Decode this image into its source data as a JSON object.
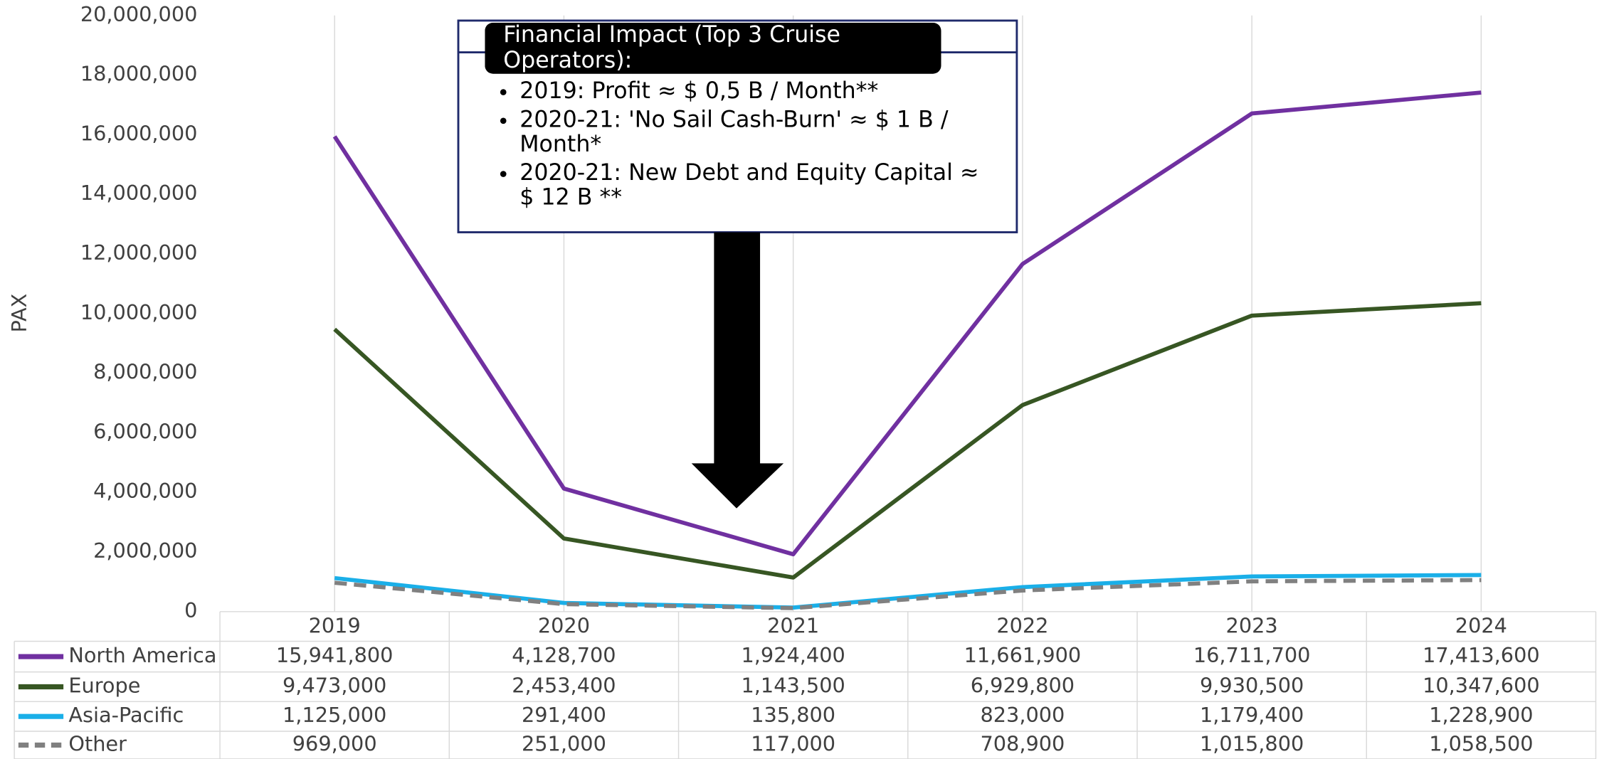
{
  "chart_data": {
    "type": "line",
    "y_label": "PAX",
    "categories": [
      "2019",
      "2020",
      "2021",
      "2022",
      "2023",
      "2024"
    ],
    "ylim": [
      0,
      20000000
    ],
    "yticks": [
      0,
      {
        "value": 2000000,
        "label": "2,000,000"
      },
      {
        "value": 4000000,
        "label": "4,000,000"
      },
      {
        "value": 6000000,
        "label": "6,000,000"
      },
      {
        "value": 8000000,
        "label": "8,000,000"
      },
      {
        "value": 10000000,
        "label": "10,000,000"
      },
      {
        "value": 12000000,
        "label": "12,000,000"
      },
      {
        "value": 14000000,
        "label": "14,000,000"
      },
      {
        "value": 16000000,
        "label": "16,000,000"
      },
      {
        "value": 18000000,
        "label": "18,000,000"
      },
      {
        "value": 20000000,
        "label": "20,000,000"
      }
    ],
    "series": [
      {
        "name": "North America",
        "color": "#7030a0",
        "dashed": false,
        "values": [
          15941800,
          4128700,
          1924400,
          11661900,
          16711700,
          17413600
        ],
        "value_labels": [
          "15,941,800",
          "4,128,700",
          "1,924,400",
          "11,661,900",
          "16,711,700",
          "17,413,600"
        ]
      },
      {
        "name": "Europe",
        "color": "#375623",
        "dashed": false,
        "values": [
          9473000,
          2453400,
          1143500,
          6929800,
          9930500,
          10347600
        ],
        "value_labels": [
          "9,473,000",
          "2,453,400",
          "1,143,500",
          "6,929,800",
          "9,930,500",
          "10,347,600"
        ]
      },
      {
        "name": "Asia-Pacific",
        "color": "#1aafe8",
        "dashed": false,
        "values": [
          1125000,
          291400,
          135800,
          823000,
          1179400,
          1228900
        ],
        "value_labels": [
          "1,125,000",
          "291,400",
          "135,800",
          "823,000",
          "1,179,400",
          "1,228,900"
        ]
      },
      {
        "name": "Other",
        "color": "#808080",
        "dashed": true,
        "values": [
          969000,
          251000,
          117000,
          708900,
          1015800,
          1058500
        ],
        "value_labels": [
          "969,000",
          "251,000",
          "117,000",
          "708,900",
          "1,015,800",
          "1,058,500"
        ]
      }
    ],
    "annotation": {
      "title": "Financial Impact (Top 3 Cruise Operators):",
      "bullets": [
        "2019: Profit ≈ $ 0,5 B / Month**",
        "2020-21: 'No Sail Cash-Burn' ≈ $ 1 B / Month*",
        "2020-21: New Debt and Equity Capital ≈ $ 12 B **"
      ]
    }
  }
}
